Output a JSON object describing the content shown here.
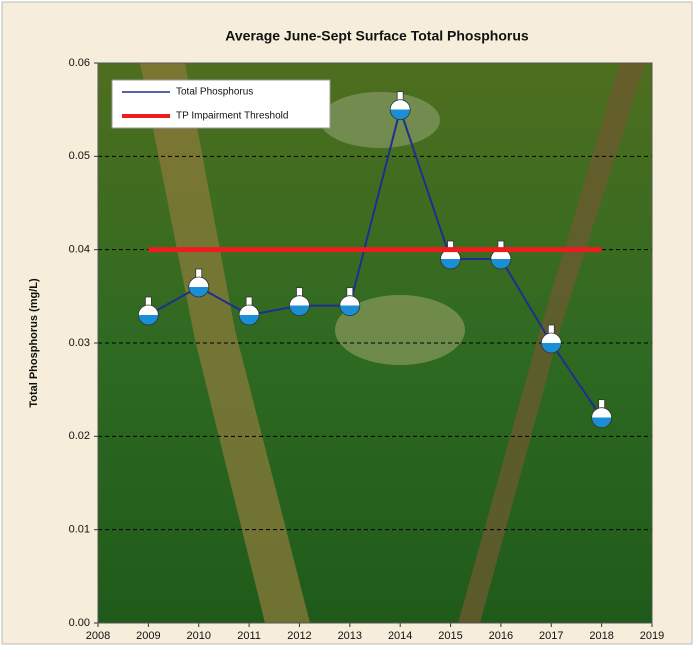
{
  "chart_data": {
    "type": "line",
    "title": "Average June-Sept Surface  Total Phosphorus",
    "ylabel": "Total Phosphorus (mg/L)",
    "series": [
      {
        "name": "Total Phosphorus",
        "color": "#1f2f8f",
        "marker": "flask",
        "x": [
          2009,
          2010,
          2011,
          2012,
          2013,
          2014,
          2015,
          2016,
          2017,
          2018
        ],
        "values": [
          0.033,
          0.036,
          0.033,
          0.034,
          0.034,
          0.055,
          0.039,
          0.039,
          0.03,
          0.022
        ]
      },
      {
        "name": "TP Impairment Threshold",
        "color": "#ee1c1c",
        "x": [
          2009,
          2018
        ],
        "values": [
          0.04,
          0.04
        ]
      }
    ],
    "xlim": [
      2008,
      2019
    ],
    "xticks": [
      2008,
      2009,
      2010,
      2011,
      2012,
      2013,
      2014,
      2015,
      2016,
      2017,
      2018,
      2019
    ],
    "ylim": [
      0,
      0.06
    ],
    "yticks": [
      {
        "value": 0,
        "label": "0.00"
      },
      {
        "value": 0.01,
        "label": "0.01"
      },
      {
        "value": 0.02,
        "label": "0.02"
      },
      {
        "value": 0.03,
        "label": "0.03"
      },
      {
        "value": 0.04,
        "label": "0.04"
      },
      {
        "value": 0.05,
        "label": "0.05"
      },
      {
        "value": 0.06,
        "label": "0.06"
      }
    ],
    "grid": true,
    "legend": "upper left"
  }
}
